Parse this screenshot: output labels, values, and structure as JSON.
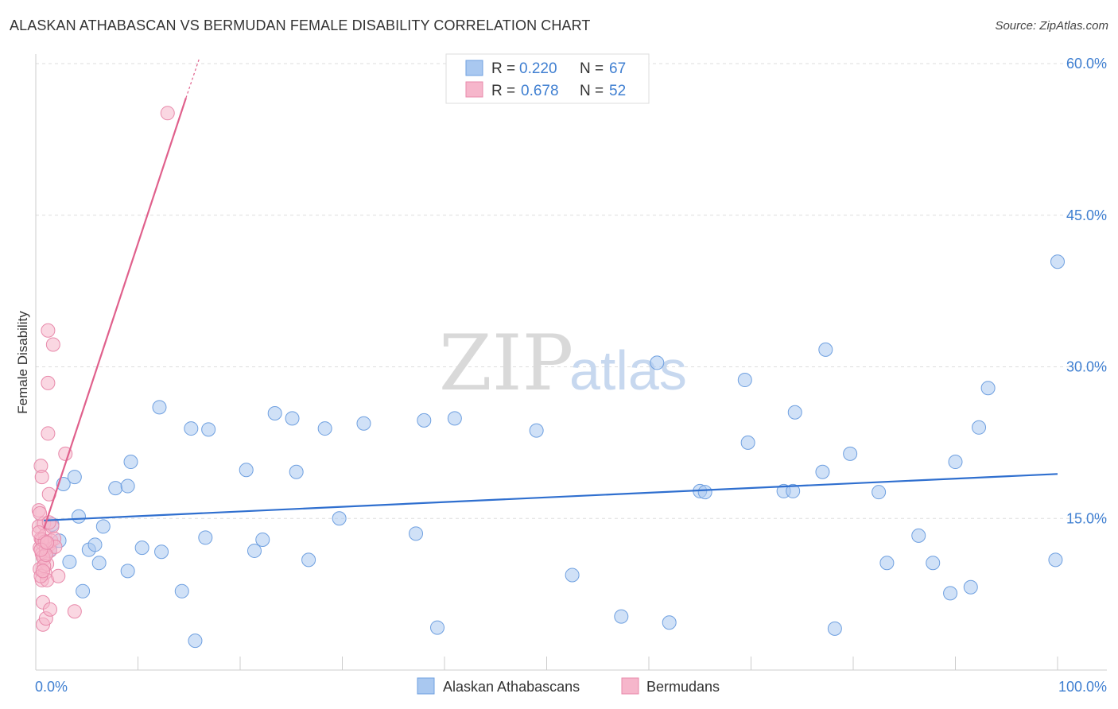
{
  "header": {
    "title": "ALASKAN ATHABASCAN VS BERMUDAN FEMALE DISABILITY CORRELATION CHART",
    "source": "Source: ZipAtlas.com"
  },
  "colors": {
    "blue": "#3f7fd1",
    "blue_fill": "#a9c8f0",
    "blue_line": "#2f6fcf",
    "pink": "#e8729a",
    "pink_fill": "#f6b6cb",
    "pink_line": "#e0608c",
    "grid": "#dddddd"
  },
  "watermark": {
    "zip": "ZIP",
    "atlas": "atlas"
  },
  "chart_data": {
    "type": "scatter",
    "title": "ALASKAN ATHABASCAN VS BERMUDAN FEMALE DISABILITY CORRELATION CHART",
    "xlabel": "",
    "ylabel": "Female Disability",
    "xlim": [
      0,
      100
    ],
    "ylim": [
      0,
      60
    ],
    "x_tick_labels": [
      "0.0%",
      "100.0%"
    ],
    "y_ticks": [
      15,
      30,
      45,
      60
    ],
    "y_tick_labels": [
      "15.0%",
      "30.0%",
      "45.0%",
      "60.0%"
    ],
    "grid": true,
    "legend": {
      "position": "top-center",
      "entries": [
        {
          "r_label": "R =",
          "r_value": "0.220",
          "n_label": "N =",
          "n_value": "67"
        },
        {
          "r_label": "R =",
          "r_value": "0.678",
          "n_label": "N =",
          "n_value": "52"
        }
      ]
    },
    "series": [
      {
        "name": "Alaskan Athabascans",
        "color": "blue",
        "trend": {
          "x": [
            0.8,
            100
          ],
          "y": [
            14.8,
            19.4
          ]
        },
        "points": [
          [
            1.4,
            11.9
          ],
          [
            1.6,
            14.4
          ],
          [
            2.3,
            12.8
          ],
          [
            2.7,
            18.4
          ],
          [
            3.3,
            10.7
          ],
          [
            3.8,
            19.1
          ],
          [
            4.2,
            15.2
          ],
          [
            4.6,
            7.8
          ],
          [
            5.2,
            11.9
          ],
          [
            5.8,
            12.4
          ],
          [
            6.2,
            10.6
          ],
          [
            6.6,
            14.2
          ],
          [
            7.8,
            18.0
          ],
          [
            9.0,
            9.8
          ],
          [
            9.0,
            18.2
          ],
          [
            9.3,
            20.6
          ],
          [
            10.4,
            12.1
          ],
          [
            12.1,
            26.0
          ],
          [
            12.3,
            11.7
          ],
          [
            14.3,
            7.8
          ],
          [
            15.2,
            23.9
          ],
          [
            15.6,
            2.9
          ],
          [
            16.6,
            13.1
          ],
          [
            16.9,
            23.8
          ],
          [
            20.6,
            19.8
          ],
          [
            21.4,
            11.8
          ],
          [
            22.2,
            12.9
          ],
          [
            23.4,
            25.4
          ],
          [
            25.1,
            24.9
          ],
          [
            25.5,
            19.6
          ],
          [
            26.7,
            10.9
          ],
          [
            28.3,
            23.9
          ],
          [
            29.7,
            15.0
          ],
          [
            32.1,
            24.4
          ],
          [
            37.2,
            13.5
          ],
          [
            38.0,
            24.7
          ],
          [
            39.3,
            4.2
          ],
          [
            41.0,
            24.9
          ],
          [
            49.0,
            23.7
          ],
          [
            52.5,
            9.4
          ],
          [
            57.3,
            5.3
          ],
          [
            60.8,
            30.4
          ],
          [
            62.0,
            4.7
          ],
          [
            65.0,
            17.7
          ],
          [
            65.5,
            17.6
          ],
          [
            69.4,
            28.7
          ],
          [
            69.7,
            22.5
          ],
          [
            73.2,
            17.7
          ],
          [
            74.1,
            17.7
          ],
          [
            74.3,
            25.5
          ],
          [
            77.0,
            19.6
          ],
          [
            77.3,
            31.7
          ],
          [
            78.2,
            4.1
          ],
          [
            79.7,
            21.4
          ],
          [
            82.5,
            17.6
          ],
          [
            83.3,
            10.6
          ],
          [
            86.4,
            13.3
          ],
          [
            87.8,
            10.6
          ],
          [
            89.5,
            7.6
          ],
          [
            90.0,
            20.6
          ],
          [
            91.5,
            8.2
          ],
          [
            92.3,
            24.0
          ],
          [
            93.2,
            27.9
          ],
          [
            99.8,
            10.9
          ],
          [
            100.0,
            40.4
          ]
        ]
      },
      {
        "name": "Bermudans",
        "color": "pink",
        "trend": {
          "x": [
            0.8,
            14.7
          ],
          "y": [
            14.0,
            56.6
          ]
        },
        "trend_ext": {
          "x": [
            14.7,
            16.0
          ],
          "y": [
            56.6,
            60.5
          ]
        },
        "points": [
          [
            0.3,
            15.8
          ],
          [
            0.3,
            14.2
          ],
          [
            0.4,
            12.1
          ],
          [
            0.4,
            10.0
          ],
          [
            0.5,
            13.0
          ],
          [
            0.5,
            20.2
          ],
          [
            0.6,
            19.1
          ],
          [
            0.6,
            11.5
          ],
          [
            0.6,
            8.9
          ],
          [
            0.7,
            12.5
          ],
          [
            0.7,
            6.7
          ],
          [
            0.7,
            4.5
          ],
          [
            0.8,
            14.5
          ],
          [
            0.8,
            11.0
          ],
          [
            0.9,
            13.3
          ],
          [
            0.9,
            9.6
          ],
          [
            1.0,
            12.0
          ],
          [
            1.0,
            5.1
          ],
          [
            1.1,
            10.5
          ],
          [
            1.1,
            8.9
          ],
          [
            1.2,
            33.6
          ],
          [
            1.2,
            28.4
          ],
          [
            1.2,
            23.4
          ],
          [
            1.3,
            17.4
          ],
          [
            1.3,
            12.4
          ],
          [
            1.4,
            11.8
          ],
          [
            1.4,
            6.0
          ],
          [
            1.5,
            12.8
          ],
          [
            1.6,
            14.2
          ],
          [
            1.7,
            32.2
          ],
          [
            1.8,
            13.0
          ],
          [
            1.9,
            12.2
          ],
          [
            2.2,
            9.3
          ],
          [
            2.9,
            21.4
          ],
          [
            3.8,
            5.8
          ],
          [
            0.4,
            15.5
          ],
          [
            0.5,
            9.3
          ],
          [
            0.6,
            12.9
          ],
          [
            0.7,
            11.2
          ],
          [
            0.8,
            10.3
          ],
          [
            0.9,
            12.7
          ],
          [
            1.0,
            11.4
          ],
          [
            0.3,
            13.6
          ],
          [
            0.5,
            11.9
          ],
          [
            0.7,
            9.8
          ],
          [
            1.1,
            12.6
          ],
          [
            1.3,
            14.6
          ],
          [
            12.9,
            55.1
          ]
        ]
      }
    ]
  }
}
